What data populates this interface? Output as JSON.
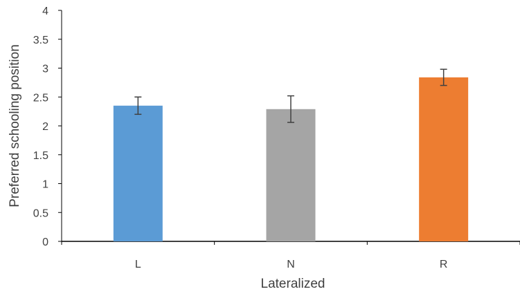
{
  "chart_data": {
    "type": "bar",
    "title": "",
    "xlabel": "Lateralized",
    "ylabel": "Preferred schooling position",
    "categories": [
      "L",
      "N",
      "R"
    ],
    "values": [
      2.35,
      2.29,
      2.84
    ],
    "error": [
      0.15,
      0.23,
      0.14
    ],
    "colors": [
      "#5b9bd5",
      "#a5a5a5",
      "#ed7d31"
    ],
    "ylim": [
      0,
      4
    ],
    "yticks": [
      "0",
      "0.5",
      "1",
      "1.5",
      "2",
      "2.5",
      "3",
      "3.5",
      "4"
    ],
    "grid": false,
    "legend": "none"
  }
}
